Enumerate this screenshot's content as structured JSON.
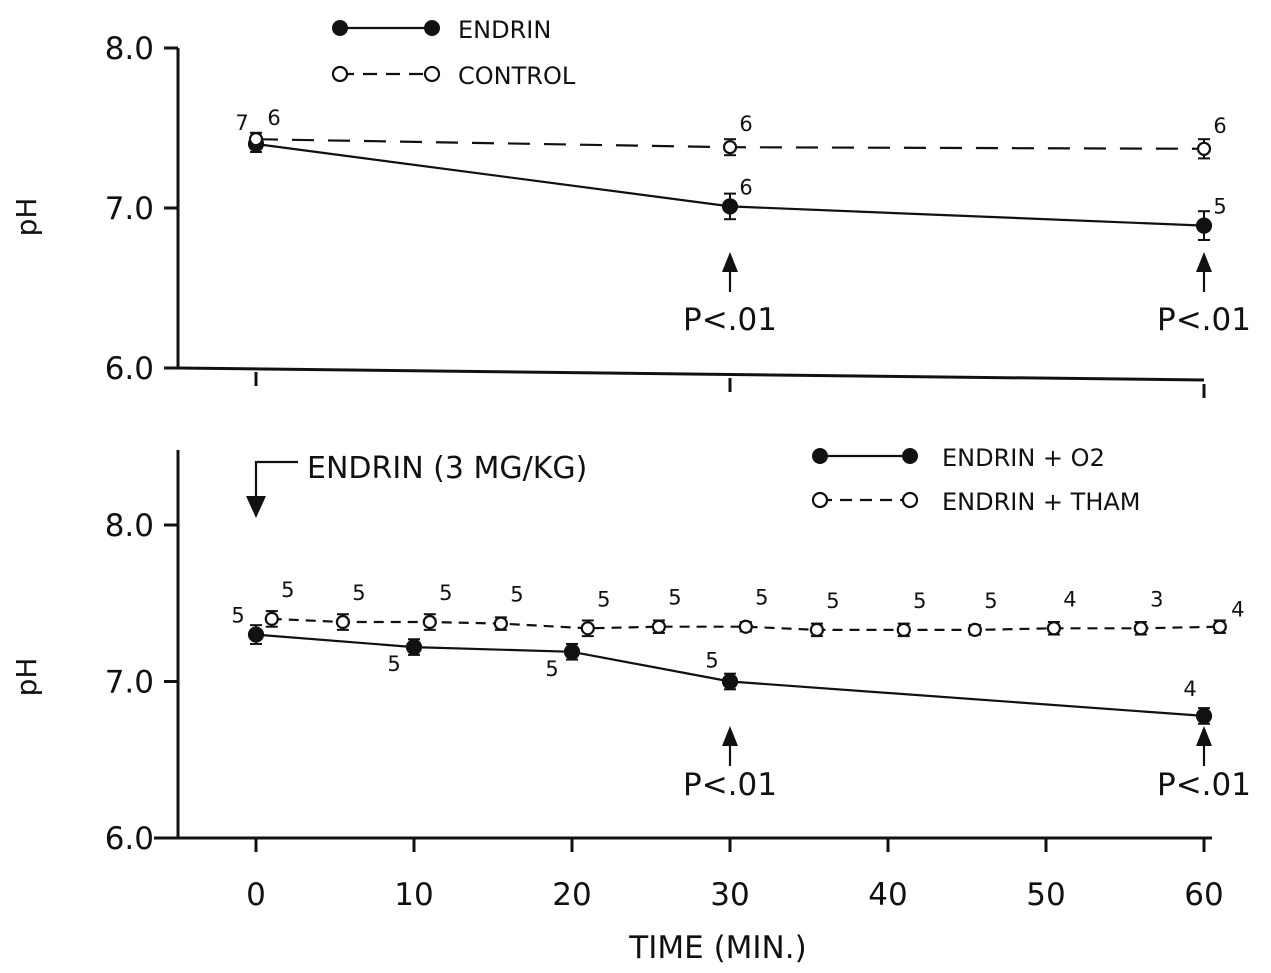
{
  "chart_data": [
    {
      "type": "line",
      "title": "",
      "xlabel": "",
      "ylabel": "pH",
      "x": [
        0,
        30,
        60
      ],
      "ylim": [
        6.0,
        8.0
      ],
      "y_ticks": [
        "6.0",
        "7.0",
        "8.0"
      ],
      "legend": {
        "placement": "top-left"
      },
      "series": [
        {
          "name": "ENDRIN",
          "style": "solid-filled",
          "x": [
            0,
            30,
            60
          ],
          "values": [
            7.4,
            7.01,
            6.89
          ],
          "err": [
            0.05,
            0.08,
            0.09
          ],
          "n": [
            "7",
            "6",
            "5"
          ]
        },
        {
          "name": "CONTROL",
          "style": "dashed-open",
          "x": [
            0,
            30,
            60
          ],
          "values": [
            7.43,
            7.38,
            7.37
          ],
          "err": [
            0.04,
            0.05,
            0.06
          ],
          "n": [
            "6",
            "6",
            "6"
          ]
        }
      ],
      "annotations": [
        {
          "text": "P<.01",
          "x": 30
        },
        {
          "text": "P<.01",
          "x": 60
        }
      ]
    },
    {
      "type": "line",
      "title": "",
      "xlabel": "TIME (MIN.)",
      "ylabel": "pH",
      "x": [
        0,
        10,
        20,
        30,
        40,
        50,
        60
      ],
      "xlim": [
        0,
        60
      ],
      "x_ticks": [
        "0",
        "10",
        "20",
        "30",
        "40",
        "50",
        "60"
      ],
      "ylim": [
        6.0,
        8.0
      ],
      "y_ticks": [
        "6.0",
        "7.0",
        "8.0"
      ],
      "legend": {
        "placement": "top-right"
      },
      "dose_note": "ENDRIN (3 MG/KG)",
      "series": [
        {
          "name": "ENDRIN + O2",
          "style": "solid-filled",
          "x": [
            0,
            10,
            20,
            30,
            60
          ],
          "values": [
            7.3,
            7.22,
            7.19,
            7.0,
            6.78
          ],
          "err": [
            0.06,
            0.05,
            0.05,
            0.05,
            0.05
          ],
          "n": [
            "5",
            "5",
            "5",
            "5",
            "4"
          ]
        },
        {
          "name": "ENDRIN + THAM",
          "style": "dashed-open",
          "x": [
            1,
            5.5,
            11,
            15.5,
            21,
            25.5,
            31,
            35.5,
            41,
            45.5,
            50.5,
            56,
            61
          ],
          "values": [
            7.4,
            7.38,
            7.38,
            7.37,
            7.34,
            7.35,
            7.35,
            7.33,
            7.33,
            7.33,
            7.34,
            7.34,
            7.35
          ],
          "err": [
            0.05,
            0.05,
            0.05,
            0.04,
            0.05,
            0.04,
            0.03,
            0.04,
            0.04,
            0.03,
            0.04,
            0.04,
            0.04
          ],
          "n": [
            "5",
            "5",
            "5",
            "5",
            "5",
            "5",
            "5",
            "5",
            "5",
            "5",
            "4",
            "3",
            "4"
          ]
        }
      ],
      "annotations": [
        {
          "text": "P<.01",
          "x": 30
        },
        {
          "text": "P<.01",
          "x": 60
        }
      ]
    }
  ]
}
